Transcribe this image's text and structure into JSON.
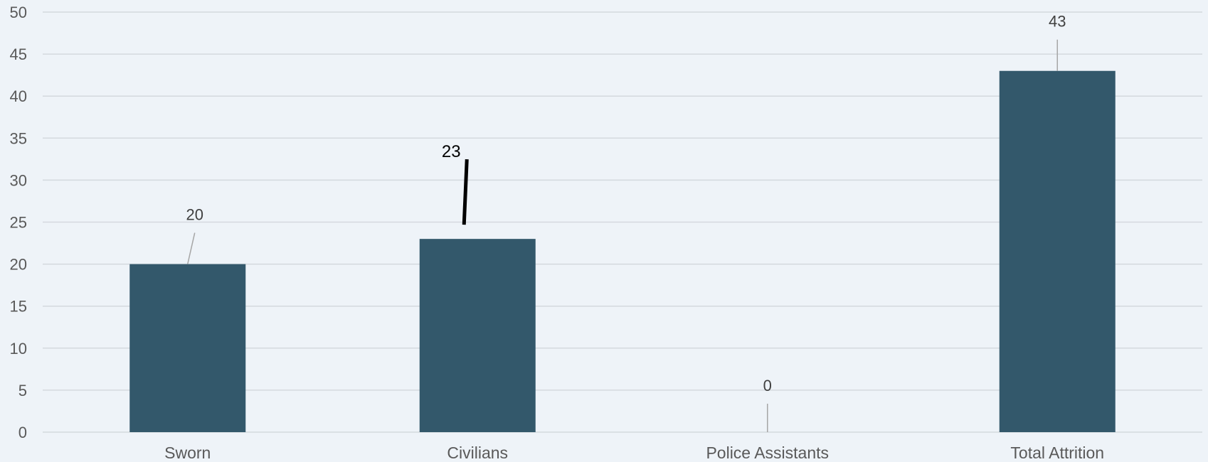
{
  "chart_data": {
    "type": "bar",
    "categories": [
      "Sworn",
      "Civilians",
      "Police Assistants",
      "Total Attrition"
    ],
    "series": [
      {
        "values": [
          20,
          23,
          0,
          43
        ]
      }
    ],
    "data_labels": [
      "20",
      "23",
      "0",
      "43"
    ],
    "highlighted_label_index": 1,
    "title": "",
    "xlabel": "",
    "ylabel": "",
    "ylim": [
      0,
      50
    ],
    "yticks": [
      0,
      5,
      10,
      15,
      20,
      25,
      30,
      35,
      40,
      45,
      50
    ],
    "grid": true,
    "legend": "none",
    "colors": {
      "bar": "#33586b",
      "grid": "#d4d9de",
      "background": "#eef3f8",
      "leader_line": "#a6a6a6"
    }
  }
}
